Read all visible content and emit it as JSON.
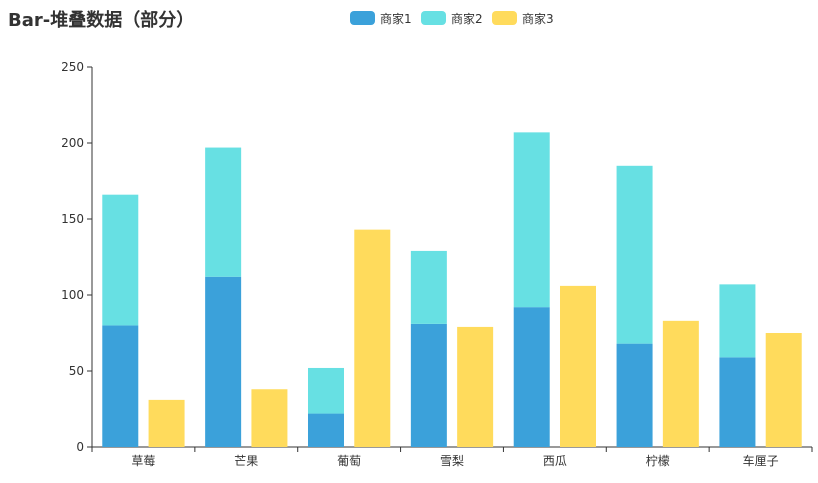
{
  "chart_data": {
    "type": "bar",
    "stacked": "partial",
    "title": "Bar-堆叠数据（部分）",
    "categories": [
      "草莓",
      "芒果",
      "葡萄",
      "雪梨",
      "西瓜",
      "柠檬",
      "车厘子"
    ],
    "series": [
      {
        "name": "商家1",
        "stack": "stack1",
        "color": "#3ba1da",
        "values": [
          80,
          112,
          22,
          81,
          92,
          68,
          59
        ]
      },
      {
        "name": "商家2",
        "stack": "stack1",
        "color": "#67e0e3",
        "values": [
          86,
          85,
          30,
          48,
          115,
          117,
          48
        ]
      },
      {
        "name": "商家3",
        "stack": "stack2",
        "color": "#ffdb5c",
        "values": [
          31,
          38,
          143,
          79,
          106,
          83,
          75
        ]
      }
    ],
    "yticks": [
      "0",
      "50",
      "100",
      "150",
      "200",
      "250"
    ],
    "ylim": [
      0,
      250
    ],
    "xlabel": "",
    "ylabel": "",
    "legend_position": "top-center",
    "grid": false
  }
}
